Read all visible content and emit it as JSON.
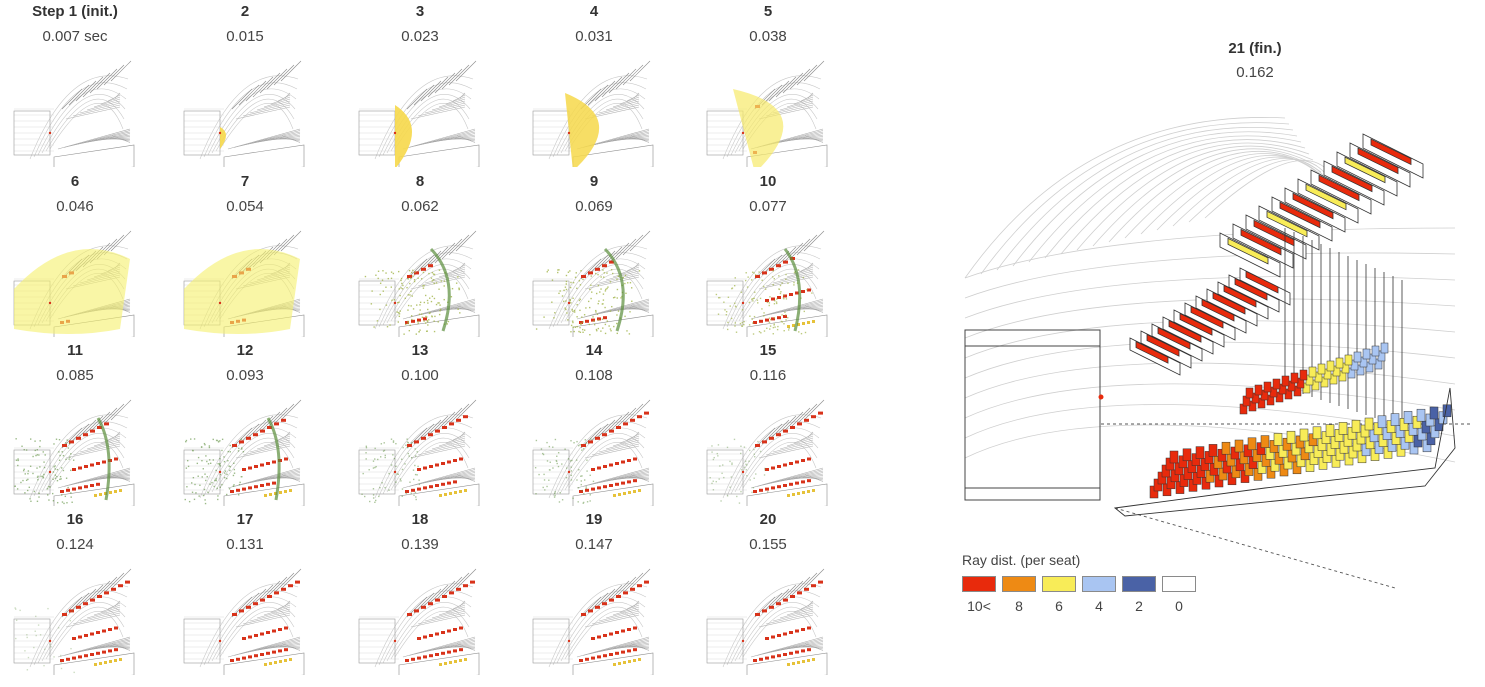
{
  "thumbnails": [
    {
      "step": "Step 1 (init.)",
      "time": "0.007 sec",
      "wave": "none"
    },
    {
      "step": "2",
      "time": "0.015",
      "wave": "y1"
    },
    {
      "step": "3",
      "time": "0.023",
      "wave": "y2"
    },
    {
      "step": "4",
      "time": "0.031",
      "wave": "y3"
    },
    {
      "step": "5",
      "time": "0.038",
      "wave": "y4"
    },
    {
      "step": "6",
      "time": "0.046",
      "wave": "y5"
    },
    {
      "step": "7",
      "time": "0.054",
      "wave": "y5"
    },
    {
      "step": "8",
      "time": "0.062",
      "wave": "g1"
    },
    {
      "step": "9",
      "time": "0.069",
      "wave": "g1"
    },
    {
      "step": "10",
      "time": "0.077",
      "wave": "g2"
    },
    {
      "step": "11",
      "time": "0.085",
      "wave": "g3"
    },
    {
      "step": "12",
      "time": "0.093",
      "wave": "g3"
    },
    {
      "step": "13",
      "time": "0.100",
      "wave": "g4"
    },
    {
      "step": "14",
      "time": "0.108",
      "wave": "g4"
    },
    {
      "step": "15",
      "time": "0.116",
      "wave": "g5"
    },
    {
      "step": "16",
      "time": "0.124",
      "wave": "g6"
    },
    {
      "step": "17",
      "time": "0.131",
      "wave": "none"
    },
    {
      "step": "18",
      "time": "0.139",
      "wave": "none"
    },
    {
      "step": "19",
      "time": "0.147",
      "wave": "none"
    },
    {
      "step": "20",
      "time": "0.155",
      "wave": "none"
    }
  ],
  "final": {
    "step": "21 (fin.)",
    "time": "0.162"
  },
  "legend": {
    "title": "Ray dist. (per seat)",
    "items": [
      {
        "label": "10<",
        "color": "#e82a0c"
      },
      {
        "label": "8",
        "color": "#ee8a14"
      },
      {
        "label": "6",
        "color": "#f8ec58"
      },
      {
        "label": "4",
        "color": "#a9c5f2"
      },
      {
        "label": "2",
        "color": "#4a62a6"
      },
      {
        "label": "0",
        "color": "#ffffff"
      }
    ]
  }
}
